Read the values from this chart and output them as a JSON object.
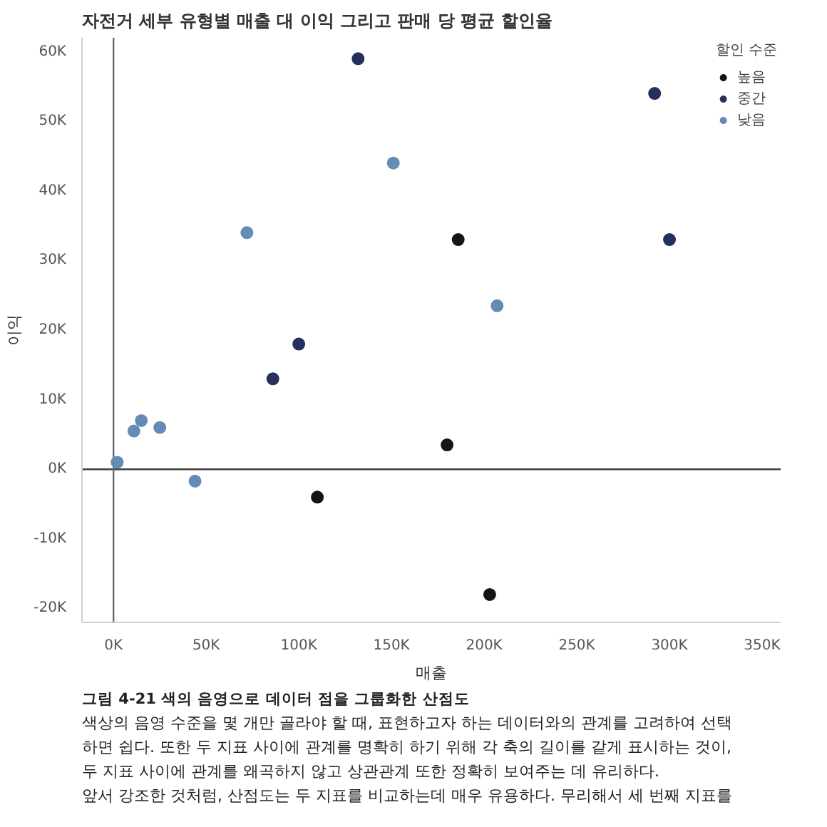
{
  "chart_data": {
    "type": "scatter",
    "title": "자전거 세부 유형별 매출 대 이익 그리고 판매 당 평균 할인율",
    "xlabel": "매출",
    "ylabel": "이익",
    "legend_title": "할인 수준",
    "series": [
      {
        "name": "높음",
        "color": "#151515",
        "x": [
          110000,
          180000,
          186000,
          203000
        ],
        "values": [
          -4000,
          3500,
          33000,
          -18000
        ]
      },
      {
        "name": "중간",
        "color": "#27305c",
        "x": [
          86000,
          100000,
          132000,
          292000,
          300000
        ],
        "values": [
          13000,
          18000,
          59000,
          54000,
          33000
        ]
      },
      {
        "name": "낮음",
        "color": "#648cb4",
        "x": [
          2000,
          11000,
          15000,
          25000,
          44000,
          72000,
          151000,
          207000
        ],
        "values": [
          1000,
          5500,
          7000,
          6000,
          -1700,
          34000,
          44000,
          23500
        ]
      }
    ],
    "xlim": [
      -17000,
      360000
    ],
    "ylim": [
      -22000,
      62000
    ],
    "xticks": [
      {
        "value": 0,
        "label": "0K"
      },
      {
        "value": 50000,
        "label": "50K"
      },
      {
        "value": 100000,
        "label": "100K"
      },
      {
        "value": 150000,
        "label": "150K"
      },
      {
        "value": 200000,
        "label": "200K"
      },
      {
        "value": 250000,
        "label": "250K"
      },
      {
        "value": 300000,
        "label": "300K"
      },
      {
        "value": 350000,
        "label": "350K"
      }
    ],
    "yticks": [
      {
        "value": -20000,
        "label": "-20K"
      },
      {
        "value": -10000,
        "label": "-10K"
      },
      {
        "value": 0,
        "label": "0K"
      },
      {
        "value": 10000,
        "label": "10K"
      },
      {
        "value": 20000,
        "label": "20K"
      },
      {
        "value": 30000,
        "label": "30K"
      },
      {
        "value": 40000,
        "label": "40K"
      },
      {
        "value": 50000,
        "label": "50K"
      },
      {
        "value": 60000,
        "label": "60K"
      }
    ],
    "ref_lines": [
      {
        "axis": "y",
        "value": 0,
        "color": "#404040"
      },
      {
        "axis": "x",
        "value": 0,
        "color": "#6a6a6a"
      }
    ],
    "grid": false,
    "legend": "top right",
    "marker": "circle",
    "annotations": [
      "그림 4-21 색의 음영으로 데이터 점을 그룹화한 산점도",
      "색상의 음영 수준을 몇 개만 골라야 할 때, 표현하고자 하는 데이터와의 관계를 고려하여 선택",
      "하면 쉽다. 또한 두 지표 사이에 관계를 명확히 하기 위해 각 축의 길이를 같게 표시하는 것이,",
      "두 지표 사이에 관계를 왜곡하지 않고 상관관계 또한 정확히 보여주는 데 유리하다.",
      "앞서 강조한 것처럼, 산점도는 두 지표를 비교하는데 매우 유용하다. 무리해서 세 번째 지표를"
    ]
  }
}
